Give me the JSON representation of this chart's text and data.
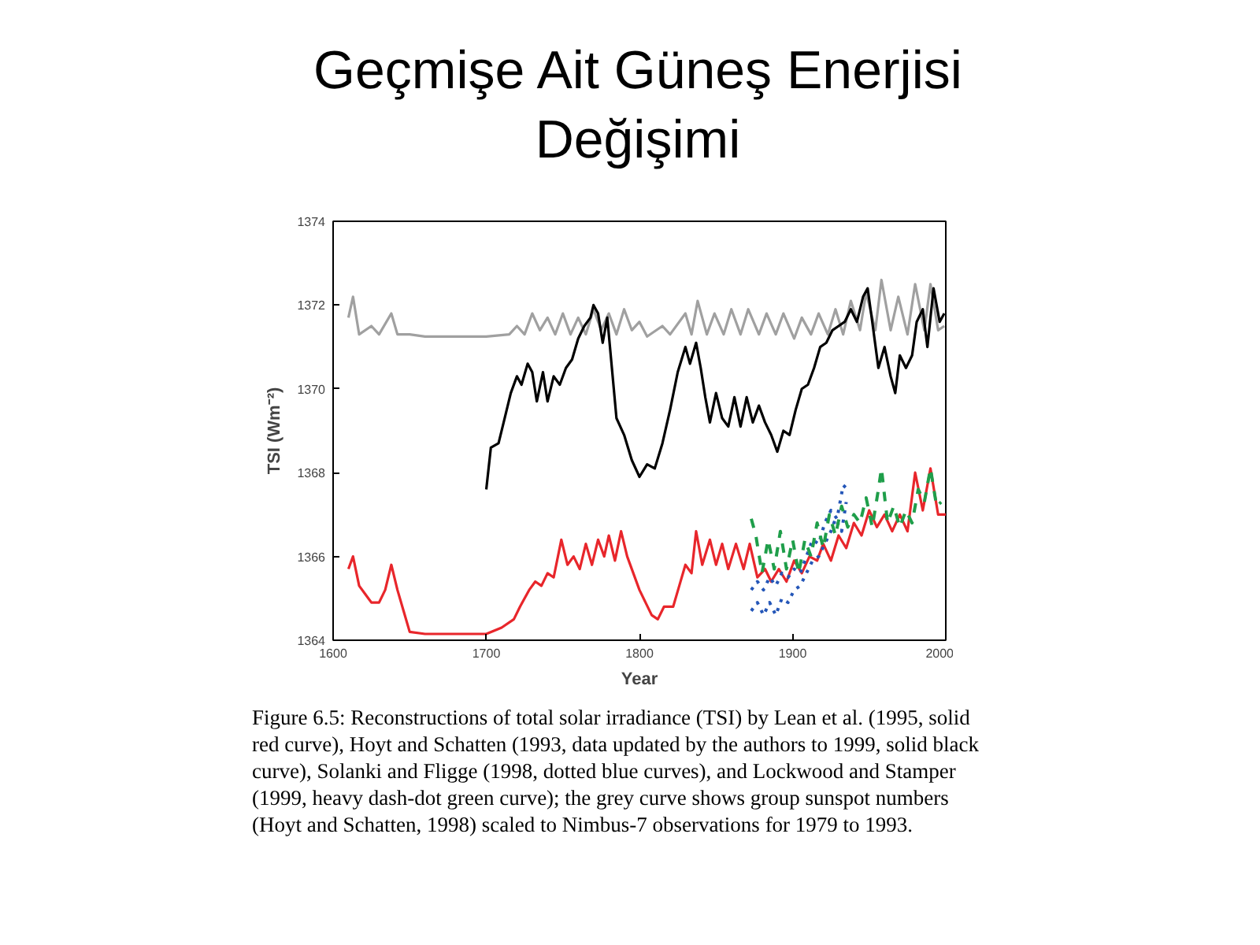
{
  "chart_data": {
    "type": "line",
    "title": "Geçmişe Ait Güneş Enerjisi Değişimi",
    "xlabel": "Year",
    "ylabel": "TSI (Wm⁻²)",
    "xlim": [
      1600,
      2000
    ],
    "xticks": [
      1600,
      1700,
      1800,
      1900,
      2000
    ],
    "ylim": [
      1364,
      1374
    ],
    "yticks": [
      1364,
      1366,
      1368,
      1370,
      1372,
      1374
    ],
    "grid": false,
    "annotations": [
      "Figure 6.5: Reconstructions of total solar irradiance (TSI) by Lean et al. (1995, solid red curve), Hoyt and Schatten (1993, data updated by the authors to 1999, solid black curve), Solanki and Fligge (1998, dotted blue curves), and Lockwood and Stamper (1999, heavy dash-dot green curve); the grey curve shows group sunspot numbers (Hoyt and Schatten, 1998) scaled to Nimbus-7 observations for 1979 to 1993."
    ],
    "series": [
      {
        "color": "#a0a0a0",
        "line_style": "solid",
        "x": [
          1610,
          1613,
          1617,
          1625,
          1630,
          1638,
          1642,
          1650,
          1660,
          1700,
          1715,
          1720,
          1725,
          1730,
          1735,
          1740,
          1745,
          1750,
          1755,
          1760,
          1765,
          1770,
          1775,
          1780,
          1785,
          1790,
          1795,
          1800,
          1805,
          1815,
          1820,
          1830,
          1834,
          1838,
          1844,
          1849,
          1855,
          1860,
          1866,
          1871,
          1878,
          1883,
          1889,
          1894,
          1901,
          1906,
          1912,
          1917,
          1923,
          1928,
          1933,
          1938,
          1944,
          1948,
          1954,
          1958,
          1964,
          1969,
          1975,
          1980,
          1986,
          1990,
          1995,
          1999
        ],
        "values": [
          1371.7,
          1372.2,
          1371.3,
          1371.5,
          1371.3,
          1371.8,
          1371.3,
          1371.3,
          1371.25,
          1371.25,
          1371.3,
          1371.5,
          1371.3,
          1371.8,
          1371.4,
          1371.7,
          1371.3,
          1371.8,
          1371.3,
          1371.7,
          1371.3,
          1371.9,
          1371.4,
          1371.8,
          1371.3,
          1371.9,
          1371.4,
          1371.6,
          1371.25,
          1371.5,
          1371.3,
          1371.8,
          1371.3,
          1372.1,
          1371.3,
          1371.8,
          1371.3,
          1371.9,
          1371.3,
          1371.9,
          1371.3,
          1371.8,
          1371.3,
          1371.8,
          1371.2,
          1371.7,
          1371.3,
          1371.8,
          1371.3,
          1371.9,
          1371.3,
          1372.1,
          1371.4,
          1372.3,
          1371.4,
          1372.6,
          1371.4,
          1372.2,
          1371.3,
          1372.5,
          1371.4,
          1372.5,
          1371.4,
          1371.5
        ]
      },
      {
        "color": "#000000",
        "line_style": "solid",
        "x": [
          1700,
          1703,
          1708,
          1712,
          1716,
          1720,
          1723,
          1727,
          1730,
          1733,
          1737,
          1740,
          1744,
          1748,
          1752,
          1756,
          1760,
          1764,
          1768,
          1770,
          1773,
          1776,
          1779,
          1782,
          1785,
          1790,
          1795,
          1800,
          1805,
          1810,
          1815,
          1820,
          1825,
          1830,
          1833,
          1837,
          1840,
          1843,
          1846,
          1850,
          1854,
          1858,
          1862,
          1866,
          1870,
          1874,
          1878,
          1882,
          1886,
          1890,
          1894,
          1898,
          1902,
          1906,
          1910,
          1914,
          1918,
          1922,
          1926,
          1930,
          1934,
          1938,
          1942,
          1946,
          1949,
          1952,
          1956,
          1960,
          1964,
          1967,
          1970,
          1974,
          1978,
          1981,
          1985,
          1988,
          1992,
          1996,
          1999
        ],
        "values": [
          1367.6,
          1368.6,
          1368.7,
          1369.3,
          1369.9,
          1370.3,
          1370.1,
          1370.6,
          1370.4,
          1369.7,
          1370.4,
          1369.7,
          1370.3,
          1370.1,
          1370.5,
          1370.7,
          1371.2,
          1371.5,
          1371.7,
          1372.0,
          1371.8,
          1371.1,
          1371.7,
          1370.5,
          1369.3,
          1368.9,
          1368.3,
          1367.9,
          1368.2,
          1368.1,
          1368.7,
          1369.5,
          1370.4,
          1371.0,
          1370.6,
          1371.1,
          1370.5,
          1369.8,
          1369.2,
          1369.9,
          1369.3,
          1369.1,
          1369.8,
          1369.1,
          1369.8,
          1369.2,
          1369.6,
          1369.2,
          1368.9,
          1368.5,
          1369.0,
          1368.9,
          1369.5,
          1370.0,
          1370.1,
          1370.5,
          1371.0,
          1371.1,
          1371.4,
          1371.5,
          1371.6,
          1371.9,
          1371.6,
          1372.2,
          1372.4,
          1371.6,
          1370.5,
          1371.0,
          1370.3,
          1369.9,
          1370.8,
          1370.5,
          1370.8,
          1371.6,
          1371.9,
          1371.0,
          1372.4,
          1371.6,
          1371.8
        ]
      },
      {
        "color": "#e8262b",
        "line_style": "solid",
        "x": [
          1610,
          1613,
          1617,
          1621,
          1625,
          1630,
          1634,
          1638,
          1642,
          1646,
          1650,
          1660,
          1700,
          1710,
          1718,
          1722,
          1728,
          1732,
          1736,
          1740,
          1744,
          1749,
          1753,
          1757,
          1761,
          1765,
          1769,
          1773,
          1777,
          1780,
          1784,
          1788,
          1792,
          1796,
          1800,
          1804,
          1808,
          1812,
          1816,
          1822,
          1826,
          1830,
          1834,
          1837,
          1841,
          1846,
          1850,
          1854,
          1858,
          1863,
          1868,
          1872,
          1877,
          1882,
          1886,
          1891,
          1896,
          1901,
          1906,
          1911,
          1916,
          1920,
          1925,
          1930,
          1935,
          1940,
          1945,
          1950,
          1955,
          1960,
          1965,
          1970,
          1975,
          1980,
          1985,
          1990,
          1995,
          2000
        ],
        "values": [
          1365.7,
          1366.0,
          1365.3,
          1365.1,
          1364.9,
          1364.9,
          1365.2,
          1365.8,
          1365.2,
          1364.7,
          1364.2,
          1364.15,
          1364.15,
          1364.3,
          1364.5,
          1364.8,
          1365.2,
          1365.4,
          1365.3,
          1365.6,
          1365.5,
          1366.4,
          1365.8,
          1366.0,
          1365.7,
          1366.3,
          1365.8,
          1366.4,
          1366.0,
          1366.5,
          1365.9,
          1366.6,
          1366.0,
          1365.6,
          1365.2,
          1364.9,
          1364.6,
          1364.5,
          1364.8,
          1364.8,
          1365.3,
          1365.8,
          1365.6,
          1366.6,
          1365.8,
          1366.4,
          1365.8,
          1366.3,
          1365.7,
          1366.3,
          1365.7,
          1366.3,
          1365.5,
          1365.7,
          1365.4,
          1365.7,
          1365.4,
          1365.9,
          1365.6,
          1366.0,
          1365.9,
          1366.3,
          1365.9,
          1366.5,
          1366.2,
          1366.8,
          1366.5,
          1367.1,
          1366.7,
          1367.0,
          1366.6,
          1367.0,
          1366.6,
          1368.0,
          1367.1,
          1368.1,
          1367.0,
          1367.0
        ]
      },
      {
        "color": "#2456b8",
        "line_style": "dotted",
        "x": [
          1873,
          1877,
          1881,
          1885,
          1889,
          1893,
          1897,
          1901,
          1905,
          1909,
          1913,
          1917,
          1921,
          1925,
          1928,
          1932,
          1935
        ],
        "values": [
          1364.7,
          1364.9,
          1364.6,
          1364.9,
          1364.6,
          1365.0,
          1364.9,
          1365.2,
          1365.3,
          1365.6,
          1365.9,
          1366.0,
          1366.3,
          1366.6,
          1366.9,
          1366.6,
          1367.3
        ]
      },
      {
        "color": "#2456b8",
        "line_style": "dotted",
        "x": [
          1873,
          1877,
          1881,
          1885,
          1889,
          1893,
          1897,
          1901,
          1905,
          1909,
          1913,
          1917,
          1921,
          1925,
          1929,
          1933,
          1936
        ],
        "values": [
          1365.2,
          1365.4,
          1365.2,
          1365.5,
          1365.3,
          1365.6,
          1365.5,
          1365.7,
          1365.6,
          1366.0,
          1366.4,
          1366.3,
          1366.8,
          1367.1,
          1366.9,
          1367.7,
          1367.6
        ]
      },
      {
        "color": "#1f9e4a",
        "line_style": "dashed",
        "x": [
          1873,
          1876,
          1880,
          1884,
          1888,
          1892,
          1896,
          1900,
          1904,
          1908,
          1912,
          1916,
          1920,
          1924,
          1928,
          1932,
          1936,
          1940,
          1944,
          1948,
          1952,
          1956,
          1958,
          1962,
          1966,
          1970,
          1974,
          1978,
          1982,
          1986,
          1990,
          1994,
          1997
        ],
        "values": [
          1366.9,
          1366.5,
          1365.6,
          1366.4,
          1365.7,
          1366.6,
          1365.7,
          1366.4,
          1365.6,
          1366.4,
          1366.0,
          1366.8,
          1366.2,
          1367.0,
          1366.5,
          1367.2,
          1366.7,
          1367.0,
          1366.8,
          1367.4,
          1366.7,
          1367.6,
          1368.1,
          1366.8,
          1367.2,
          1366.7,
          1367.1,
          1366.8,
          1367.6,
          1367.3,
          1368.1,
          1367.2,
          1367.3
        ]
      }
    ]
  }
}
